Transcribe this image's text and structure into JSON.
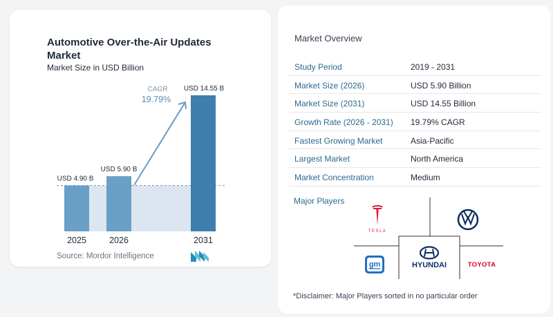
{
  "chart": {
    "title_line1": "Automotive Over-the-Air Updates",
    "title_line2": "Market",
    "subtitle": "Market Size in USD Billion",
    "cagr_label": "CAGR",
    "cagr_value": "19.79%",
    "source": "Source: Mordor Intelligence"
  },
  "chart_data": {
    "type": "bar",
    "title": "Automotive Over-the-Air Updates Market",
    "subtitle": "Market Size in USD Billion",
    "categories": [
      "2025",
      "2026",
      "2031"
    ],
    "values": [
      4.9,
      5.9,
      14.55
    ],
    "value_labels": [
      "USD 4.90 B",
      "USD 5.90 B",
      "USD 14.55 B"
    ],
    "ylim": [
      0,
      14.55
    ],
    "annotation": "CAGR 19.79%",
    "colors": {
      "bar_light": "#6a9fc7",
      "bar_dark": "#3f7fae",
      "band": "#dbe6f0",
      "arrow": "#6c9bbf"
    }
  },
  "overview": {
    "title": "Market Overview",
    "rows": [
      {
        "key": "Study Period",
        "value": "2019 - 2031"
      },
      {
        "key": "Market Size (2026)",
        "value": "USD 5.90 Billion"
      },
      {
        "key": "Market Size (2031)",
        "value": "USD 14.55 Billion"
      },
      {
        "key": "Growth Rate (2026 - 2031)",
        "value": "19.79% CAGR"
      },
      {
        "key": "Fastest Growing Market",
        "value": "Asia-Pacific"
      },
      {
        "key": "Largest Market",
        "value": "North America"
      },
      {
        "key": "Market Concentration",
        "value": "Medium"
      }
    ]
  },
  "players": {
    "title": "Major Players",
    "tesla": "TESLA",
    "vw": "VW",
    "gm": "gm",
    "hyundai": "HYUNDAI",
    "toyota": "TOYOTA",
    "logo_icons": [
      "tesla-logo",
      "volkswagen-logo",
      "gm-logo",
      "hyundai-logo",
      "toyota-logo"
    ]
  },
  "disclaimer": "*Disclaimer: Major Players sorted in no particular order"
}
